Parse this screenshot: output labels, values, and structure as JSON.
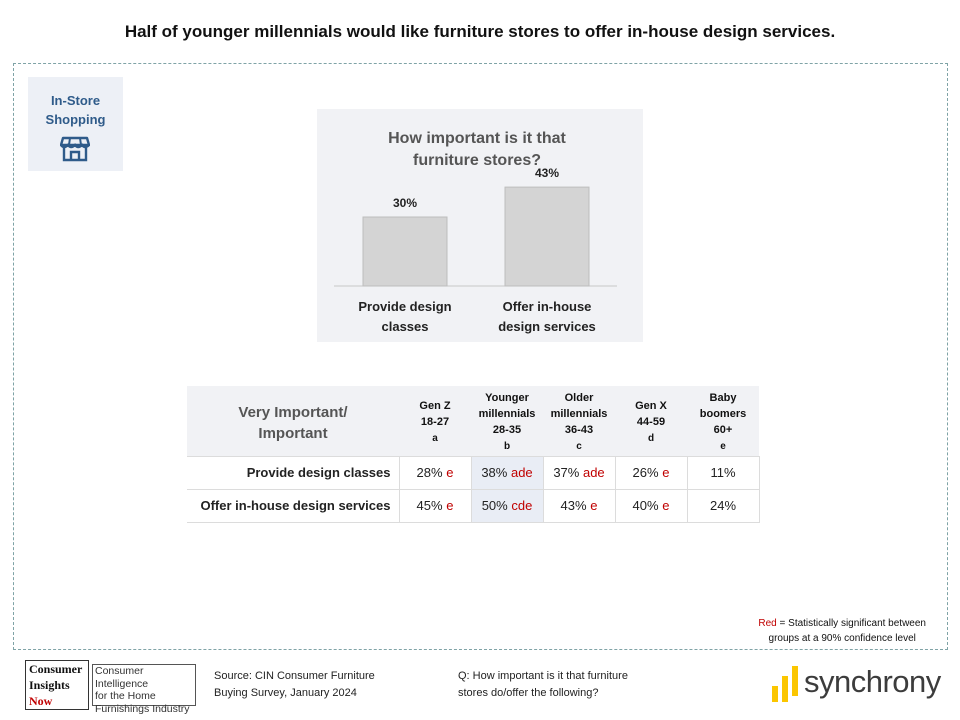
{
  "title": "Half of younger millennials would like furniture stores to offer in-house design services.",
  "badge": {
    "label_line1": "In-Store",
    "label_line2": "Shopping",
    "icon": "storefront-icon"
  },
  "chart_data": {
    "type": "bar",
    "title_line1": "How important is it that",
    "title_line2": "furniture stores?",
    "categories": [
      [
        "Provide design",
        "classes"
      ],
      [
        "Offer in-house",
        "design services"
      ]
    ],
    "values": [
      30,
      43
    ],
    "data_labels": [
      "30%",
      "43%"
    ],
    "ylim": [
      0,
      50
    ],
    "bar_color": "#d4d4d4",
    "grid": false
  },
  "table": {
    "question_header": [
      "Very Important/",
      "Important"
    ],
    "columns": [
      {
        "lines": [
          "Gen Z",
          "18-27"
        ],
        "letter": "a"
      },
      {
        "lines": [
          "Younger",
          "millennials",
          "28-35"
        ],
        "letter": "b"
      },
      {
        "lines": [
          "Older",
          "millennials",
          "36-43"
        ],
        "letter": "c"
      },
      {
        "lines": [
          "Gen X",
          "44-59"
        ],
        "letter": "d"
      },
      {
        "lines": [
          "Baby",
          "boomers",
          "60+"
        ],
        "letter": "e"
      }
    ],
    "rows": [
      {
        "label": "Provide design classes",
        "cells": [
          {
            "value": "28%",
            "sig": "e"
          },
          {
            "value": "38%",
            "sig": "ade"
          },
          {
            "value": "37%",
            "sig": "ade"
          },
          {
            "value": "26%",
            "sig": "e"
          },
          {
            "value": "11%",
            "sig": ""
          }
        ]
      },
      {
        "label": "Offer in-house design services",
        "cells": [
          {
            "value": "45%",
            "sig": "e"
          },
          {
            "value": "50%",
            "sig": "cde"
          },
          {
            "value": "43%",
            "sig": "e"
          },
          {
            "value": "40%",
            "sig": "e"
          },
          {
            "value": "24%",
            "sig": ""
          }
        ]
      }
    ],
    "highlight_column": 1,
    "sig_color": "#c00000"
  },
  "legend": {
    "red_word": "Red",
    "text_line1": " = Statistically significant between",
    "text_line2": "groups at a 90% confidence level"
  },
  "footer": {
    "cin_logo": [
      "Consumer",
      "Insights",
      "Now"
    ],
    "cin_desc": [
      "Consumer Intelligence",
      "for the Home",
      "Furnishings Industry"
    ],
    "source_line1": "Source: CIN Consumer Furniture",
    "source_line2": "Buying Survey, January 2024",
    "question_line1": "Q: How important is it that furniture",
    "question_line2": "stores do/offer the following?",
    "brand": "synchrony",
    "brand_color": "#fbc600"
  }
}
